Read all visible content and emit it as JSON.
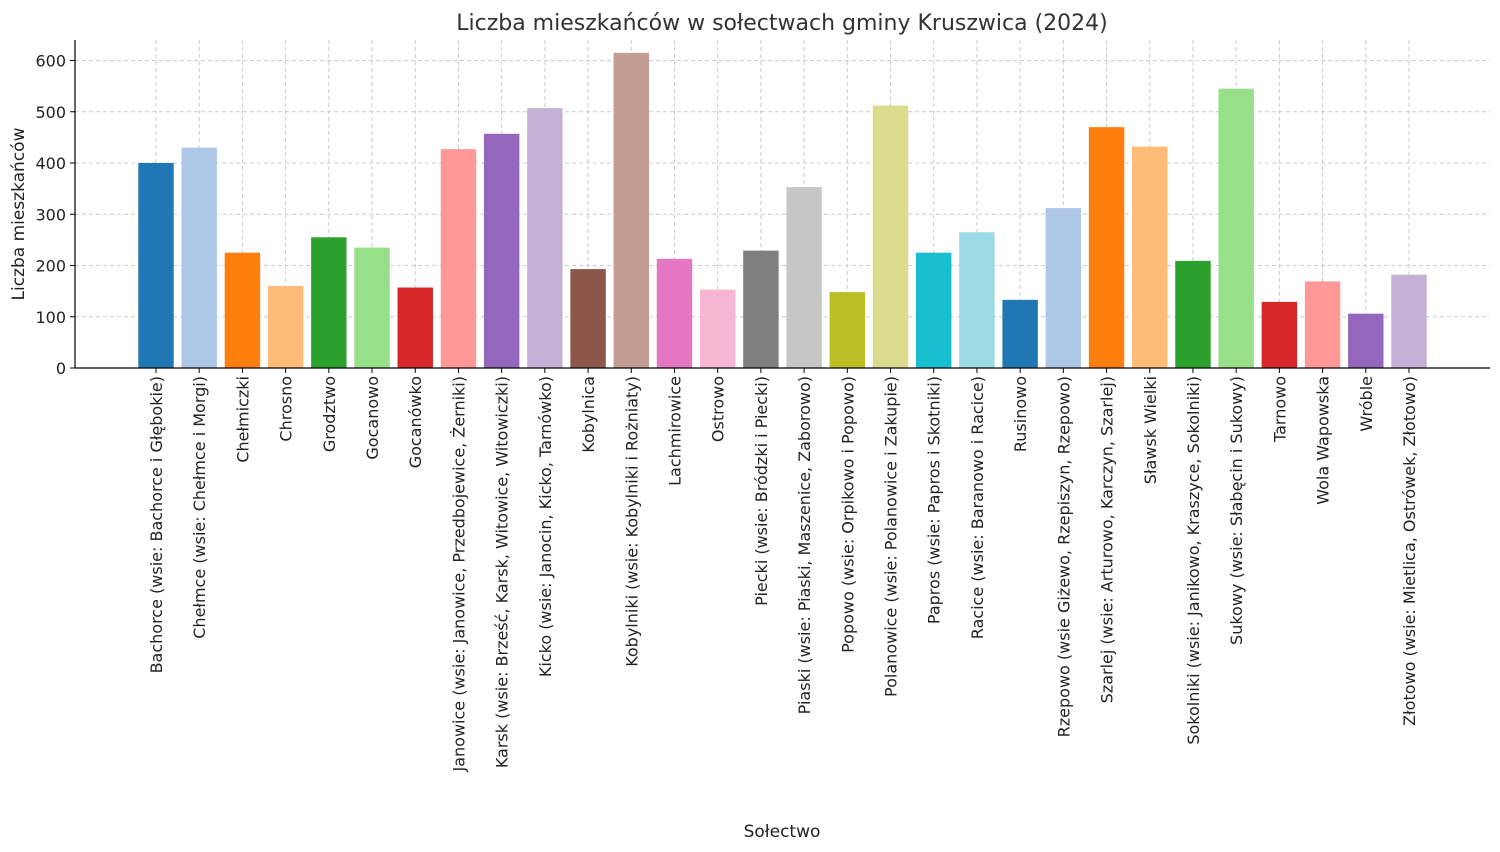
{
  "chart_data": {
    "type": "bar",
    "title": "Liczba mieszkańców w sołectwach gminy Kruszwica (2024)",
    "xlabel": "Sołectwo",
    "ylabel": "Liczba mieszkańców",
    "ylim": [
      0,
      640
    ],
    "yticks": [
      0,
      100,
      200,
      300,
      400,
      500,
      600
    ],
    "grid": true,
    "categories": [
      "Bachorce (wsie: Bachorce i Głębokie)",
      "Chełmce (wsie: Chełmce i Morgi)",
      "Chełmiczki",
      "Chrosno",
      "Grodztwo",
      "Gocanowo",
      "Gocanówko",
      "Janowice (wsie: Janowice, Przedbojewice, Żerniki)",
      "Karsk (wsie: Brześć, Karsk, Witowice, Witowiczki)",
      "Kicko (wsie: Janocin, Kicko, Tarnówko)",
      "Kobylnica",
      "Kobylniki (wsie: Kobylniki i Rożniaty)",
      "Lachmirowice",
      "Ostrowo",
      "Piecki (wsie: Bródzki i Piecki)",
      "Piaski (wsie: Piaski, Maszenice, Zaborowo)",
      "Popowo (wsie: Orpikowo i Popowo)",
      "Polanowice (wsie: Polanowice i Zakupie)",
      "Papros (wsie: Papros i Skotniki)",
      "Racice (wsie: Baranowo i Racice)",
      "Rusinowo",
      "Rzepowo (wsie Giżewo, Rzepiszyn, Rzepowo)",
      "Szarlej (wsie: Arturowo, Karczyn, Szarlej)",
      "Sławsk Wielki",
      "Sokolniki (wsie: Janikowo, Kraszyce, Sokolniki)",
      "Sukowy (wsie: Słabęcin i Sukowy)",
      "Tarnowo",
      "Wola Wapowska",
      "Wróble",
      "Złotowo (wsie: Mietlica, Ostrówek, Złotowo)"
    ],
    "values": [
      400,
      430,
      225,
      160,
      255,
      235,
      157,
      427,
      457,
      507,
      193,
      615,
      213,
      153,
      229,
      353,
      148,
      512,
      225,
      265,
      133,
      312,
      470,
      432,
      209,
      545,
      129,
      169,
      106,
      182
    ],
    "colors": [
      "#1f77b4",
      "#aec7e8",
      "#ff7f0e",
      "#ffbb78",
      "#2ca02c",
      "#98df8a",
      "#d62728",
      "#ff9896",
      "#9467bd",
      "#c5b0d5",
      "#8c564b",
      "#c49c94",
      "#e377c2",
      "#f7b6d2",
      "#7f7f7f",
      "#c7c7c7",
      "#bcbd22",
      "#dbdb8d",
      "#17becf",
      "#9edae5",
      "#1f77b4",
      "#aec7e8",
      "#ff7f0e",
      "#ffbb78",
      "#2ca02c",
      "#98df8a",
      "#d62728",
      "#ff9896",
      "#9467bd",
      "#c5b0d5"
    ]
  }
}
